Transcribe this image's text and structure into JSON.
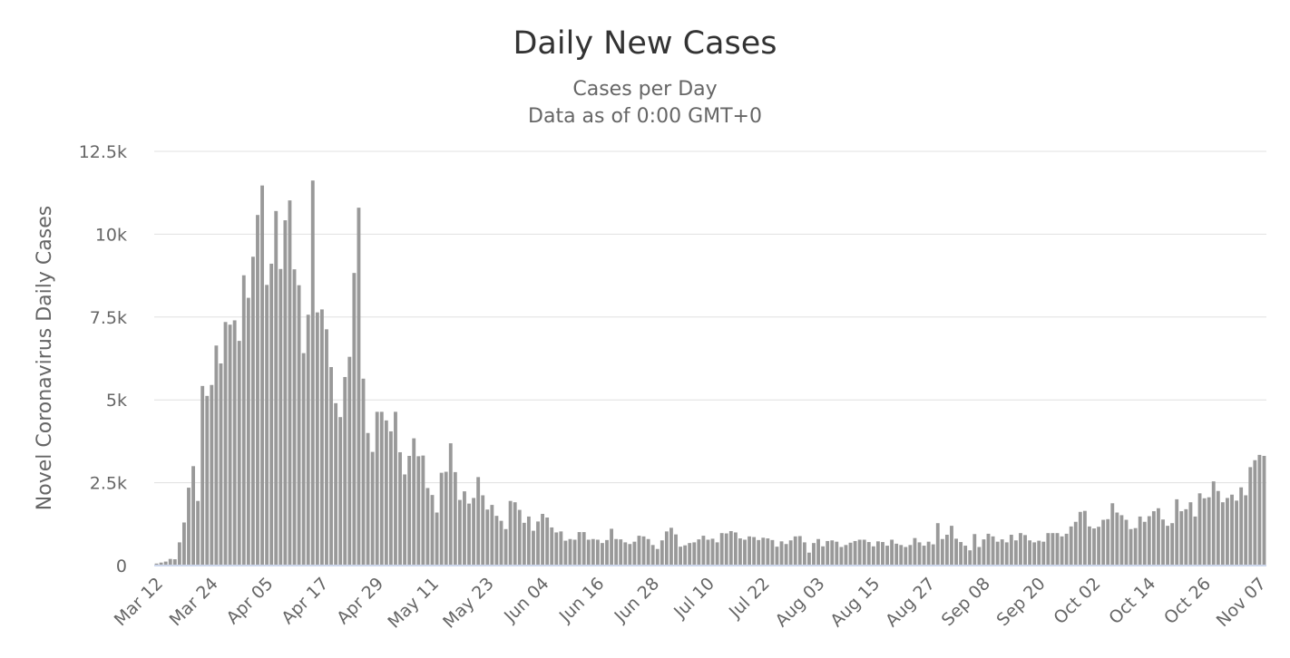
{
  "chart_data": {
    "type": "bar",
    "title": "Daily New Cases",
    "subtitle": [
      "Cases per Day",
      "Data as of 0:00 GMT+0"
    ],
    "ylabel": "Novel Coronavirus Daily Cases",
    "xlabel": "",
    "ylim": [
      0,
      12500
    ],
    "yticks": [
      0,
      2500,
      5000,
      7500,
      10000,
      12500
    ],
    "ytick_labels": [
      "0",
      "2.5k",
      "5k",
      "7.5k",
      "10k",
      "12.5k"
    ],
    "x_tick_labels": [
      "Mar 12",
      "Mar 24",
      "Apr 05",
      "Apr 17",
      "Apr 29",
      "May 11",
      "May 23",
      "Jun 04",
      "Jun 16",
      "Jun 28",
      "Jul 10",
      "Jul 22",
      "Aug 03",
      "Aug 15",
      "Aug 27",
      "Sep 08",
      "Sep 20",
      "Oct 02",
      "Oct 14",
      "Oct 26",
      "Nov 07"
    ],
    "x_tick_interval_days": 12,
    "bar_color": "#999999",
    "grid": true,
    "legend": "none",
    "values": [
      60,
      90,
      120,
      200,
      190,
      700,
      1300,
      2350,
      3000,
      1950,
      5420,
      5120,
      5450,
      6640,
      6100,
      7350,
      7270,
      7400,
      6780,
      8760,
      8080,
      9320,
      10580,
      11470,
      8470,
      9110,
      10700,
      8950,
      10420,
      11020,
      8940,
      8460,
      6410,
      7570,
      11620,
      7640,
      7730,
      7130,
      5990,
      4900,
      4480,
      5690,
      6300,
      8830,
      10800,
      5640,
      4000,
      3430,
      4640,
      4640,
      4380,
      4050,
      4640,
      3420,
      2750,
      3310,
      3840,
      3300,
      3320,
      2340,
      2130,
      1600,
      2800,
      2830,
      3690,
      2820,
      1980,
      2240,
      1870,
      2040,
      2670,
      2120,
      1690,
      1830,
      1500,
      1350,
      1100,
      1950,
      1910,
      1680,
      1290,
      1480,
      1050,
      1330,
      1560,
      1450,
      1150,
      1000,
      1030,
      750,
      800,
      780,
      1010,
      1010,
      780,
      800,
      780,
      680,
      770,
      1110,
      800,
      790,
      700,
      650,
      720,
      900,
      880,
      800,
      620,
      500,
      760,
      1030,
      1140,
      940,
      570,
      610,
      680,
      700,
      790,
      900,
      780,
      810,
      700,
      980,
      970,
      1040,
      1000,
      820,
      780,
      880,
      860,
      770,
      840,
      820,
      770,
      570,
      730,
      650,
      760,
      880,
      890,
      700,
      390,
      680,
      800,
      580,
      740,
      760,
      720,
      560,
      620,
      690,
      740,
      780,
      780,
      710,
      580,
      730,
      710,
      600,
      780,
      660,
      620,
      560,
      620,
      830,
      700,
      600,
      720,
      640,
      1280,
      800,
      930,
      1200,
      810,
      710,
      600,
      460,
      950,
      560,
      790,
      960,
      880,
      720,
      790,
      700,
      930,
      760,
      980,
      920,
      760,
      700,
      750,
      720,
      980,
      980,
      980,
      880,
      960,
      1180,
      1320,
      1620,
      1650,
      1180,
      1120,
      1170,
      1380,
      1400,
      1880,
      1600,
      1520,
      1380,
      1100,
      1130,
      1480,
      1320,
      1490,
      1640,
      1730,
      1390,
      1200,
      1280,
      2000,
      1640,
      1700,
      1910,
      1480,
      2180,
      2030,
      2060,
      2540,
      2250,
      1910,
      2040,
      2140,
      1960,
      2360,
      2120,
      2970,
      3180,
      3340,
      3310
    ]
  }
}
